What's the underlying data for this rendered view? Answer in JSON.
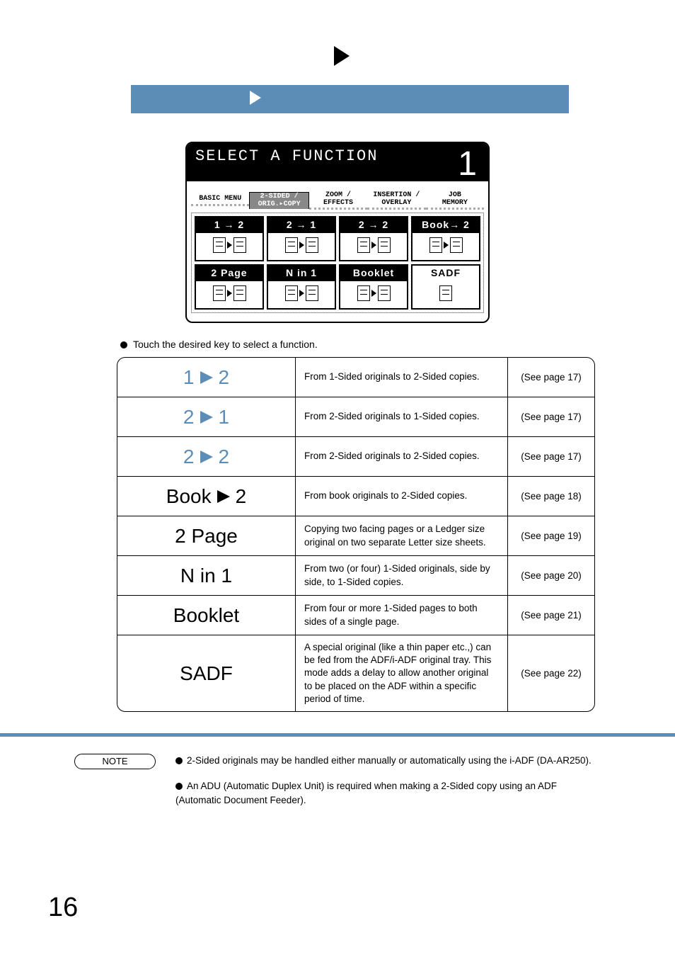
{
  "topArrowColor": "#000000",
  "blueBarColor": "#5b8db6",
  "lcd": {
    "title": "SELECT A FUNCTION",
    "counter": "1",
    "menu": {
      "basic": "BASIC MENU",
      "twoSided": "2-SIDED /\nORIG.▸COPY",
      "zoom": "ZOOM /\nEFFECTS",
      "insertion": "INSERTION /\nOVERLAY",
      "job": "JOB\nMEMORY"
    },
    "row1": {
      "a": "1 → 2",
      "b": "2 → 1",
      "c": "2 → 2",
      "d": "Book→ 2"
    },
    "row2": {
      "a": "2 Page",
      "b": "N in 1",
      "c": "Booklet",
      "d": "SADF"
    }
  },
  "caption": "Touch the desired key to select a function.",
  "rows": {
    "r1": {
      "left": "1",
      "right": "2",
      "desc": "From 1-Sided originals to 2-Sided copies.",
      "page": "(See page 17)"
    },
    "r2": {
      "left": "2",
      "right": "1",
      "desc": "From 2-Sided originals to 1-Sided copies.",
      "page": "(See page 17)"
    },
    "r3": {
      "left": "2",
      "right": "2",
      "desc": "From 2-Sided originals to 2-Sided copies.",
      "page": "(See page 17)"
    },
    "r4": {
      "left": "Book",
      "right": "2",
      "desc": "From book originals to 2-Sided copies.",
      "page": "(See page 18)"
    },
    "r5": {
      "name": "2 Page",
      "desc": "Copying two facing pages or a Ledger size original on two separate Letter size sheets.",
      "page": "(See page 19)"
    },
    "r6": {
      "name": "N in 1",
      "desc": "From two (or four) 1-Sided originals, side by side, to 1-Sided copies.",
      "page": "(See page 20)"
    },
    "r7": {
      "name": "Booklet",
      "desc": "From four or more 1-Sided pages to both sides of a single page.",
      "page": "(See page 21)"
    },
    "r8": {
      "name": "SADF",
      "desc": "A special original (like a thin paper etc.,) can be fed from the ADF/i-ADF original tray. This mode adds a delay to allow another original to be placed on the ADF within a specific period of time.",
      "page": "(See page 22)"
    }
  },
  "note": {
    "label": "NOTE",
    "item1": "2-Sided originals may be handled either manually or automatically using the i-ADF (DA-AR250).",
    "item2": "An ADU (Automatic Duplex Unit) is required when making a 2-Sided copy using an ADF (Automatic Document Feeder)."
  },
  "pageNumber": "16"
}
